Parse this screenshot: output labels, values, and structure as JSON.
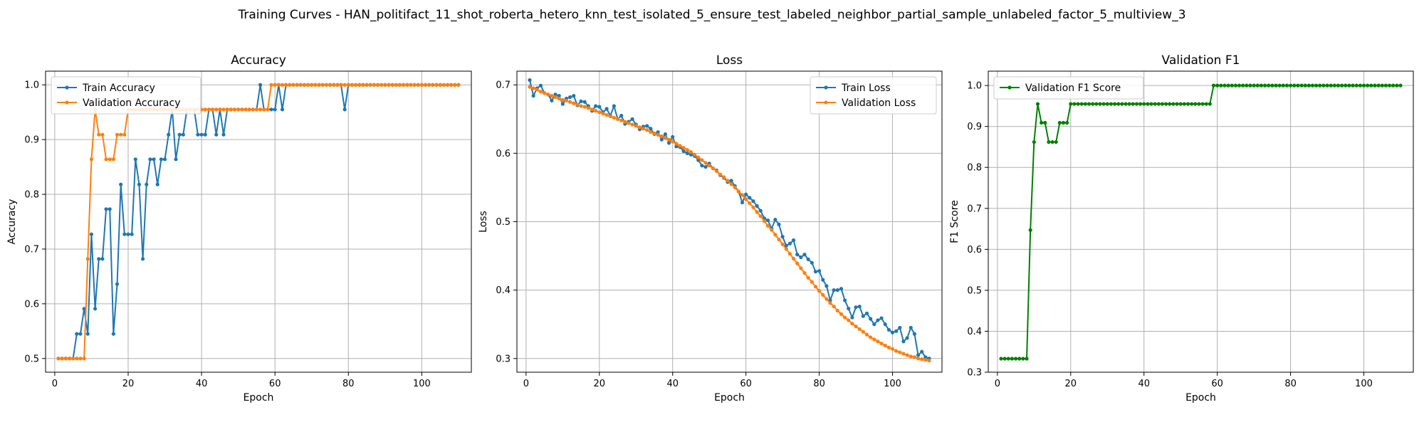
{
  "figure": {
    "title": "Training Curves - HAN_politifact_11_shot_roberta_hetero_knn_test_isolated_5_ensure_test_labeled_neighbor_partial_sample_unlabeled_factor_5_multiview_3"
  },
  "chart_data": [
    {
      "type": "line",
      "title": "Accuracy",
      "xlabel": "Epoch",
      "ylabel": "Accuracy",
      "xlim": [
        -2.5,
        113.5
      ],
      "ylim": [
        0.475,
        1.025
      ],
      "xticks": [
        0,
        20,
        40,
        60,
        80,
        100
      ],
      "yticks": [
        0.5,
        0.6,
        0.7,
        0.8,
        0.9,
        1.0
      ],
      "ytick_labels": [
        "0.5",
        "0.6",
        "0.7",
        "0.8",
        "0.9",
        "1.0"
      ],
      "grid": true,
      "legend": "upper-left",
      "series": [
        {
          "name": "Train Accuracy",
          "color": "#1f77b4",
          "x_start": 1,
          "values": [
            0.5,
            0.5,
            0.5,
            0.5,
            0.5,
            0.545,
            0.545,
            0.591,
            0.545,
            0.727,
            0.591,
            0.682,
            0.682,
            0.773,
            0.773,
            0.545,
            0.636,
            0.818,
            0.727,
            0.727,
            0.727,
            0.864,
            0.818,
            0.682,
            0.818,
            0.864,
            0.864,
            0.818,
            0.864,
            0.864,
            0.909,
            0.955,
            0.864,
            0.909,
            0.909,
            0.955,
            0.955,
            0.955,
            0.909,
            0.909,
            0.909,
            0.955,
            0.955,
            0.909,
            0.955,
            0.909,
            0.955,
            0.955,
            0.955,
            0.955,
            0.955,
            0.955,
            0.955,
            0.955,
            0.955,
            1.0,
            0.955,
            0.955,
            0.955,
            0.955,
            1.0,
            0.955,
            1.0,
            1.0,
            1.0,
            1.0,
            1.0,
            1.0,
            1.0,
            1.0,
            1.0,
            1.0,
            1.0,
            1.0,
            1.0,
            1.0,
            1.0,
            1.0,
            0.955,
            1.0,
            1.0,
            1.0,
            1.0,
            1.0,
            1.0,
            1.0,
            1.0,
            1.0,
            1.0,
            1.0,
            1.0,
            1.0,
            1.0,
            1.0,
            1.0,
            1.0,
            1.0,
            1.0,
            1.0,
            1.0,
            1.0,
            1.0,
            1.0,
            1.0,
            1.0,
            1.0,
            1.0,
            1.0,
            1.0,
            1.0
          ]
        },
        {
          "name": "Validation Accuracy",
          "color": "#ff7f0e",
          "x_start": 1,
          "values": [
            0.5,
            0.5,
            0.5,
            0.5,
            0.5,
            0.5,
            0.5,
            0.5,
            0.682,
            0.864,
            0.955,
            0.909,
            0.909,
            0.864,
            0.864,
            0.864,
            0.909,
            0.909,
            0.909,
            0.955,
            0.955,
            0.955,
            0.955,
            0.955,
            0.955,
            0.955,
            0.955,
            0.955,
            0.955,
            0.955,
            0.955,
            0.955,
            0.955,
            0.955,
            0.955,
            0.955,
            0.955,
            0.955,
            0.955,
            0.955,
            0.955,
            0.955,
            0.955,
            0.955,
            0.955,
            0.955,
            0.955,
            0.955,
            0.955,
            0.955,
            0.955,
            0.955,
            0.955,
            0.955,
            0.955,
            0.955,
            0.955,
            0.955,
            1.0,
            1.0,
            1.0,
            1.0,
            1.0,
            1.0,
            1.0,
            1.0,
            1.0,
            1.0,
            1.0,
            1.0,
            1.0,
            1.0,
            1.0,
            1.0,
            1.0,
            1.0,
            1.0,
            1.0,
            1.0,
            1.0,
            1.0,
            1.0,
            1.0,
            1.0,
            1.0,
            1.0,
            1.0,
            1.0,
            1.0,
            1.0,
            1.0,
            1.0,
            1.0,
            1.0,
            1.0,
            1.0,
            1.0,
            1.0,
            1.0,
            1.0,
            1.0,
            1.0,
            1.0,
            1.0,
            1.0,
            1.0,
            1.0,
            1.0,
            1.0,
            1.0
          ]
        }
      ]
    },
    {
      "type": "line",
      "title": "Loss",
      "xlabel": "Epoch",
      "ylabel": "Loss",
      "xlim": [
        -2.5,
        113.5
      ],
      "ylim": [
        0.28,
        0.72
      ],
      "xticks": [
        0,
        20,
        40,
        60,
        80,
        100
      ],
      "yticks": [
        0.3,
        0.4,
        0.5,
        0.6,
        0.7
      ],
      "ytick_labels": [
        "0.3",
        "0.4",
        "0.5",
        "0.6",
        "0.7"
      ],
      "grid": true,
      "legend": "upper-right",
      "series": [
        {
          "name": "Train Loss",
          "color": "#1f77b4",
          "x_start": 1,
          "values": [
            0.707,
            0.684,
            0.695,
            0.699,
            0.688,
            0.686,
            0.677,
            0.686,
            0.684,
            0.672,
            0.68,
            0.682,
            0.684,
            0.67,
            0.676,
            0.675,
            0.669,
            0.662,
            0.669,
            0.668,
            0.66,
            0.665,
            0.655,
            0.669,
            0.65,
            0.655,
            0.643,
            0.646,
            0.65,
            0.642,
            0.635,
            0.639,
            0.64,
            0.636,
            0.628,
            0.631,
            0.62,
            0.628,
            0.615,
            0.624,
            0.61,
            0.609,
            0.603,
            0.6,
            0.598,
            0.596,
            0.59,
            0.582,
            0.58,
            0.585,
            0.578,
            0.575,
            0.568,
            0.564,
            0.558,
            0.56,
            0.552,
            0.544,
            0.528,
            0.54,
            0.535,
            0.53,
            0.523,
            0.516,
            0.505,
            0.502,
            0.49,
            0.503,
            0.496,
            0.478,
            0.465,
            0.468,
            0.473,
            0.452,
            0.448,
            0.452,
            0.445,
            0.44,
            0.427,
            0.428,
            0.415,
            0.406,
            0.385,
            0.4,
            0.4,
            0.402,
            0.385,
            0.373,
            0.36,
            0.375,
            0.376,
            0.362,
            0.366,
            0.358,
            0.35,
            0.356,
            0.359,
            0.35,
            0.342,
            0.338,
            0.34,
            0.345,
            0.325,
            0.33,
            0.345,
            0.336,
            0.305,
            0.31,
            0.302,
            0.3
          ]
        },
        {
          "name": "Validation Loss",
          "color": "#ff7f0e",
          "x_start": 1,
          "values": [
            0.697,
            0.695,
            0.693,
            0.69,
            0.688,
            0.686,
            0.684,
            0.682,
            0.68,
            0.678,
            0.677,
            0.675,
            0.673,
            0.671,
            0.669,
            0.668,
            0.666,
            0.664,
            0.662,
            0.66,
            0.658,
            0.656,
            0.654,
            0.652,
            0.65,
            0.648,
            0.646,
            0.644,
            0.642,
            0.64,
            0.638,
            0.636,
            0.634,
            0.631,
            0.629,
            0.627,
            0.625,
            0.622,
            0.62,
            0.617,
            0.614,
            0.611,
            0.608,
            0.605,
            0.602,
            0.598,
            0.594,
            0.59,
            0.586,
            0.582,
            0.578,
            0.574,
            0.569,
            0.565,
            0.56,
            0.555,
            0.55,
            0.544,
            0.539,
            0.533,
            0.527,
            0.521,
            0.514,
            0.508,
            0.501,
            0.494,
            0.488,
            0.481,
            0.474,
            0.467,
            0.46,
            0.453,
            0.446,
            0.439,
            0.432,
            0.425,
            0.418,
            0.412,
            0.405,
            0.399,
            0.393,
            0.387,
            0.381,
            0.376,
            0.37,
            0.365,
            0.36,
            0.356,
            0.351,
            0.347,
            0.343,
            0.339,
            0.335,
            0.331,
            0.328,
            0.325,
            0.322,
            0.319,
            0.316,
            0.314,
            0.311,
            0.309,
            0.307,
            0.305,
            0.303,
            0.302,
            0.3,
            0.299,
            0.298,
            0.297
          ]
        }
      ]
    },
    {
      "type": "line",
      "title": "Validation F1",
      "xlabel": "Epoch",
      "ylabel": "F1 Score",
      "xlim": [
        -2.5,
        113.5
      ],
      "ylim": [
        0.3,
        1.035
      ],
      "xticks": [
        0,
        20,
        40,
        60,
        80,
        100
      ],
      "yticks": [
        0.3,
        0.4,
        0.5,
        0.6,
        0.7,
        0.8,
        0.9,
        1.0
      ],
      "ytick_labels": [
        "0.3",
        "0.4",
        "0.5",
        "0.6",
        "0.7",
        "0.8",
        "0.9",
        "1.0"
      ],
      "grid": true,
      "legend": "upper-left",
      "series": [
        {
          "name": "Validation F1 Score",
          "color": "#008000",
          "x_start": 1,
          "values": [
            0.333,
            0.333,
            0.333,
            0.333,
            0.333,
            0.333,
            0.333,
            0.333,
            0.647,
            0.862,
            0.955,
            0.909,
            0.909,
            0.862,
            0.862,
            0.862,
            0.909,
            0.909,
            0.909,
            0.955,
            0.955,
            0.955,
            0.955,
            0.955,
            0.955,
            0.955,
            0.955,
            0.955,
            0.955,
            0.955,
            0.955,
            0.955,
            0.955,
            0.955,
            0.955,
            0.955,
            0.955,
            0.955,
            0.955,
            0.955,
            0.955,
            0.955,
            0.955,
            0.955,
            0.955,
            0.955,
            0.955,
            0.955,
            0.955,
            0.955,
            0.955,
            0.955,
            0.955,
            0.955,
            0.955,
            0.955,
            0.955,
            0.955,
            1.0,
            1.0,
            1.0,
            1.0,
            1.0,
            1.0,
            1.0,
            1.0,
            1.0,
            1.0,
            1.0,
            1.0,
            1.0,
            1.0,
            1.0,
            1.0,
            1.0,
            1.0,
            1.0,
            1.0,
            1.0,
            1.0,
            1.0,
            1.0,
            1.0,
            1.0,
            1.0,
            1.0,
            1.0,
            1.0,
            1.0,
            1.0,
            1.0,
            1.0,
            1.0,
            1.0,
            1.0,
            1.0,
            1.0,
            1.0,
            1.0,
            1.0,
            1.0,
            1.0,
            1.0,
            1.0,
            1.0,
            1.0,
            1.0,
            1.0,
            1.0,
            1.0
          ]
        }
      ]
    }
  ]
}
